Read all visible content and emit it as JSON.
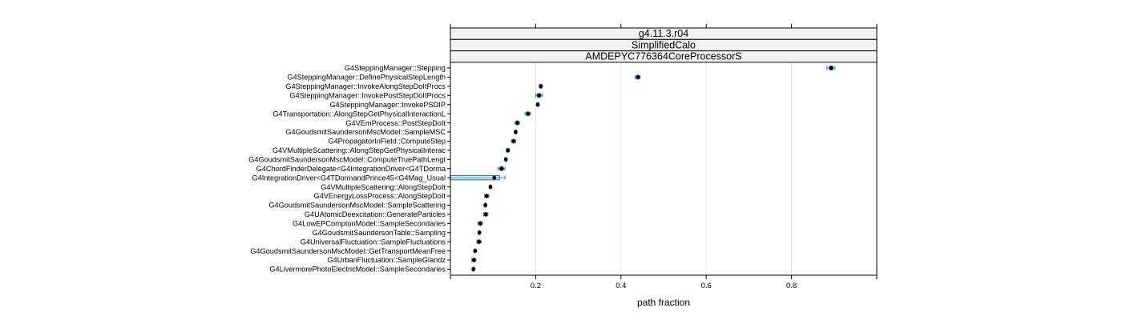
{
  "chart_data": {
    "type": "dotplot",
    "strips": [
      "g4.11.3.r04",
      "SimplifiedCalo",
      "AMDEPYC776364CoreProcessorS"
    ],
    "xlabel": "path fraction",
    "xlim": [
      0,
      1.0
    ],
    "xticks": [
      0.2,
      0.4,
      0.6,
      0.8
    ],
    "x_tick_labels": [
      "0.2",
      "0.4",
      "0.6",
      "0.8"
    ],
    "grid": true,
    "colors": {
      "point": "#000000",
      "box": "#2a7fb8",
      "grid": "#e6e6e6",
      "strip_bg": "#f2f2f2"
    },
    "rows": [
      {
        "name": "G4SteppingManager::Stepping",
        "median": 0.893,
        "q1": 0.888,
        "q3": 0.898,
        "lo": 0.883,
        "hi": 0.902
      },
      {
        "name": "G4SteppingManager::DefinePhysicalStepLength",
        "median": 0.44,
        "q1": 0.436,
        "q3": 0.443,
        "lo": 0.433,
        "hi": 0.445
      },
      {
        "name": "G4SteppingManager::InvokeAlongStepDoItProcs",
        "median": 0.212,
        "q1": 0.21,
        "q3": 0.214,
        "lo": 0.209,
        "hi": 0.215
      },
      {
        "name": "G4SteppingManager::InvokePostStepDoItProcs",
        "median": 0.208,
        "q1": 0.203,
        "q3": 0.213,
        "lo": 0.2,
        "hi": 0.216
      },
      {
        "name": "G4SteppingManager::InvokePSDIP",
        "median": 0.205,
        "q1": 0.203,
        "q3": 0.207,
        "lo": 0.202,
        "hi": 0.208
      },
      {
        "name": "G4Transportation::AlongStepGetPhysicalInteractionL",
        "median": 0.182,
        "q1": 0.178,
        "q3": 0.186,
        "lo": 0.175,
        "hi": 0.188
      },
      {
        "name": "G4VEmProcess::PostStepDoIt",
        "median": 0.157,
        "q1": 0.154,
        "q3": 0.16,
        "lo": 0.152,
        "hi": 0.162
      },
      {
        "name": "G4GoudsmitSaundersonMscModel::SampleMSC",
        "median": 0.153,
        "q1": 0.151,
        "q3": 0.155,
        "lo": 0.15,
        "hi": 0.156
      },
      {
        "name": "G4PropagatorInField::ComputeStep",
        "median": 0.148,
        "q1": 0.145,
        "q3": 0.151,
        "lo": 0.143,
        "hi": 0.153
      },
      {
        "name": "G4VMultipleScattering::AlongStepGetPhysicalInterac",
        "median": 0.135,
        "q1": 0.133,
        "q3": 0.137,
        "lo": 0.131,
        "hi": 0.138
      },
      {
        "name": "G4GoudsmitSaundersonMscModel::ComputeTruePathLengt",
        "median": 0.13,
        "q1": 0.129,
        "q3": 0.131,
        "lo": 0.128,
        "hi": 0.132
      },
      {
        "name": "G4ChordFinderDelegate<G4IntegrationDriver<G4TDorma",
        "median": 0.12,
        "q1": 0.115,
        "q3": 0.125,
        "lo": 0.112,
        "hi": 0.128
      },
      {
        "name": "G4IntegrationDriver<G4TDormandPrince45<G4Mag_Usual",
        "median": 0.103,
        "q1": 0.0,
        "q3": 0.115,
        "lo": 0.0,
        "hi": 0.128
      },
      {
        "name": "G4VMultipleScattering::AlongStepDoIt",
        "median": 0.094,
        "q1": 0.093,
        "q3": 0.095,
        "lo": 0.092,
        "hi": 0.096
      },
      {
        "name": "G4VEnergyLossProcess::AlongStepDoIt",
        "median": 0.085,
        "q1": 0.082,
        "q3": 0.088,
        "lo": 0.08,
        "hi": 0.09
      },
      {
        "name": "G4GoudsmitSaundersonMscModel::SampleScattering",
        "median": 0.082,
        "q1": 0.081,
        "q3": 0.083,
        "lo": 0.08,
        "hi": 0.084
      },
      {
        "name": "G4UAtomicDeexcitation::GenerateParticles",
        "median": 0.083,
        "q1": 0.08,
        "q3": 0.086,
        "lo": 0.078,
        "hi": 0.088
      },
      {
        "name": "G4LowEPComptonModel::SampleSecondaries",
        "median": 0.07,
        "q1": 0.067,
        "q3": 0.073,
        "lo": 0.065,
        "hi": 0.075
      },
      {
        "name": "G4GoudsmitSaundersonTable::Sampling",
        "median": 0.068,
        "q1": 0.067,
        "q3": 0.069,
        "lo": 0.066,
        "hi": 0.07
      },
      {
        "name": "G4UniversalFluctuation::SampleFluctuations",
        "median": 0.067,
        "q1": 0.064,
        "q3": 0.07,
        "lo": 0.062,
        "hi": 0.072
      },
      {
        "name": "G4GoudsmitSaundersonMscModel::GetTransportMeanFree",
        "median": 0.058,
        "q1": 0.057,
        "q3": 0.059,
        "lo": 0.056,
        "hi": 0.06
      },
      {
        "name": "G4UrbanFluctuation::SampleGlandz",
        "median": 0.055,
        "q1": 0.052,
        "q3": 0.058,
        "lo": 0.05,
        "hi": 0.06
      },
      {
        "name": "G4LivermorePhotoElectricModel::SampleSecondaries",
        "median": 0.054,
        "q1": 0.053,
        "q3": 0.055,
        "lo": 0.052,
        "hi": 0.056
      }
    ]
  }
}
